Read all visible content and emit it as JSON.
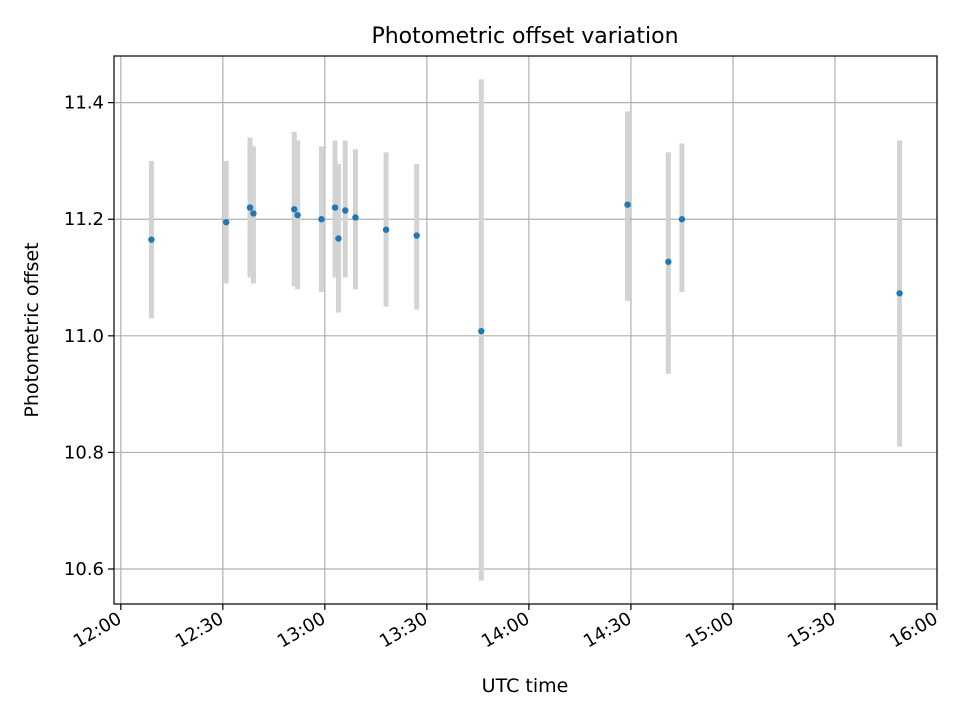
{
  "chart_data": {
    "type": "scatter",
    "title": "Photometric offset variation",
    "xlabel": "UTC time",
    "ylabel": "Photometric offset",
    "x_tick_labels": [
      "12:00",
      "12:30",
      "13:00",
      "13:30",
      "14:00",
      "14:30",
      "15:00",
      "15:30",
      "16:00"
    ],
    "y_tick_labels": [
      "10.6",
      "10.8",
      "11.0",
      "11.2",
      "11.4"
    ],
    "y_ticks": [
      10.6,
      10.8,
      11.0,
      11.2,
      11.4
    ],
    "xlim": [
      "11:58",
      "16:00"
    ],
    "ylim": [
      10.54,
      11.48
    ],
    "grid": true,
    "point_color": "#1f77b4",
    "errorbar_color": "#d3d3d3",
    "points": [
      {
        "x": "12:09",
        "y": 11.165,
        "ylow": 11.03,
        "yhigh": 11.3
      },
      {
        "x": "12:31",
        "y": 11.195,
        "ylow": 11.09,
        "yhigh": 11.3
      },
      {
        "x": "12:38",
        "y": 11.22,
        "ylow": 11.1,
        "yhigh": 11.34
      },
      {
        "x": "12:39",
        "y": 11.21,
        "ylow": 11.09,
        "yhigh": 11.325
      },
      {
        "x": "12:51",
        "y": 11.217,
        "ylow": 11.085,
        "yhigh": 11.35
      },
      {
        "x": "12:52",
        "y": 11.207,
        "ylow": 11.08,
        "yhigh": 11.335
      },
      {
        "x": "12:59",
        "y": 11.2,
        "ylow": 11.075,
        "yhigh": 11.325
      },
      {
        "x": "13:03",
        "y": 11.22,
        "ylow": 11.1,
        "yhigh": 11.335
      },
      {
        "x": "13:04",
        "y": 11.167,
        "ylow": 11.04,
        "yhigh": 11.295
      },
      {
        "x": "13:06",
        "y": 11.215,
        "ylow": 11.1,
        "yhigh": 11.335
      },
      {
        "x": "13:09",
        "y": 11.203,
        "ylow": 11.08,
        "yhigh": 11.32
      },
      {
        "x": "13:18",
        "y": 11.182,
        "ylow": 11.05,
        "yhigh": 11.315
      },
      {
        "x": "13:27",
        "y": 11.172,
        "ylow": 11.045,
        "yhigh": 11.295
      },
      {
        "x": "13:46",
        "y": 11.008,
        "ylow": 10.58,
        "yhigh": 11.44
      },
      {
        "x": "14:29",
        "y": 11.225,
        "ylow": 11.06,
        "yhigh": 11.385
      },
      {
        "x": "14:41",
        "y": 11.127,
        "ylow": 10.935,
        "yhigh": 11.315
      },
      {
        "x": "14:45",
        "y": 11.2,
        "ylow": 11.075,
        "yhigh": 11.33
      },
      {
        "x": "15:49",
        "y": 11.073,
        "ylow": 10.81,
        "yhigh": 11.335
      }
    ]
  }
}
